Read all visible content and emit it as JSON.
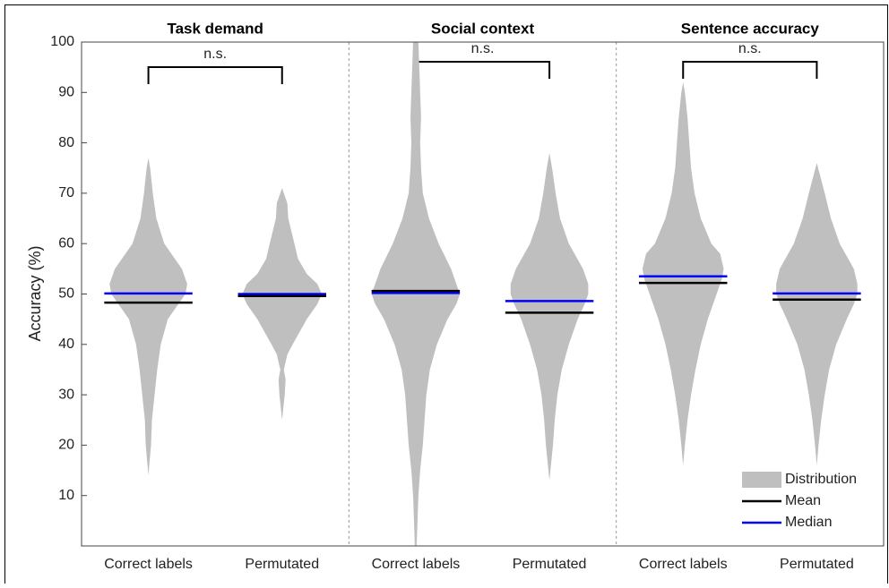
{
  "chart_data": {
    "type": "violin",
    "ylabel": "Accuracy (%)",
    "ylim": [
      0,
      100
    ],
    "yticks": [
      10,
      20,
      30,
      40,
      50,
      60,
      70,
      80,
      90,
      100
    ],
    "categories": [
      "Correct labels",
      "Permutated",
      "Correct labels",
      "Permutated",
      "Correct labels",
      "Permutated"
    ],
    "panels": [
      {
        "title": "Task demand",
        "annotation": "n.s."
      },
      {
        "title": "Social context",
        "annotation": "n.s."
      },
      {
        "title": "Sentence accuracy",
        "annotation": "n.s."
      }
    ],
    "legend": "lower right",
    "series": [
      {
        "name": "Distribution",
        "color": "#bfbfbf",
        "levels": [
          [
            14,
            20,
            25,
            30,
            35,
            40,
            45,
            47,
            50,
            52,
            55,
            60,
            65,
            70,
            75,
            77
          ],
          [
            25,
            30,
            33,
            35,
            38,
            40,
            45,
            48,
            50,
            52,
            54,
            57,
            60,
            65,
            68,
            71
          ],
          [
            0,
            5,
            10,
            15,
            20,
            25,
            30,
            35,
            40,
            45,
            48,
            50,
            52,
            55,
            60,
            65,
            70,
            75,
            80,
            85,
            90,
            95,
            100
          ],
          [
            13,
            20,
            25,
            30,
            35,
            40,
            45,
            48,
            50,
            52,
            55,
            60,
            65,
            70,
            75,
            78
          ],
          [
            16,
            20,
            25,
            30,
            35,
            40,
            45,
            50,
            53,
            55,
            58,
            60,
            65,
            70,
            75,
            80,
            85,
            90,
            92
          ],
          [
            16,
            20,
            25,
            30,
            35,
            40,
            45,
            48,
            50,
            52,
            55,
            60,
            65,
            70,
            74,
            76
          ]
        ],
        "density": [
          [
            0,
            3,
            4,
            7,
            10,
            14,
            22,
            30,
            42,
            44,
            38,
            18,
            9,
            5,
            2,
            0
          ],
          [
            0,
            3,
            4,
            2,
            6,
            12,
            28,
            40,
            45,
            40,
            28,
            18,
            14,
            7,
            6,
            0
          ],
          [
            1,
            2,
            3,
            5,
            8,
            10,
            12,
            16,
            24,
            36,
            46,
            50,
            46,
            40,
            26,
            15,
            8,
            6,
            5,
            6,
            5,
            4,
            3
          ],
          [
            0,
            4,
            6,
            9,
            14,
            22,
            32,
            40,
            44,
            44,
            38,
            22,
            12,
            7,
            3,
            0
          ],
          [
            0,
            2,
            5,
            9,
            14,
            20,
            28,
            38,
            44,
            46,
            42,
            32,
            20,
            13,
            9,
            7,
            5,
            2,
            0
          ],
          [
            0,
            2,
            5,
            9,
            14,
            22,
            34,
            42,
            46,
            46,
            42,
            26,
            16,
            9,
            3,
            0
          ]
        ]
      },
      {
        "name": "Mean",
        "color": "#000000",
        "values": [
          48.3,
          49.6,
          50.6,
          46.3,
          52.2,
          48.9
        ]
      },
      {
        "name": "Median",
        "color": "#0000ff",
        "values": [
          50.1,
          50.0,
          50.2,
          48.6,
          53.5,
          50.1
        ]
      }
    ]
  }
}
